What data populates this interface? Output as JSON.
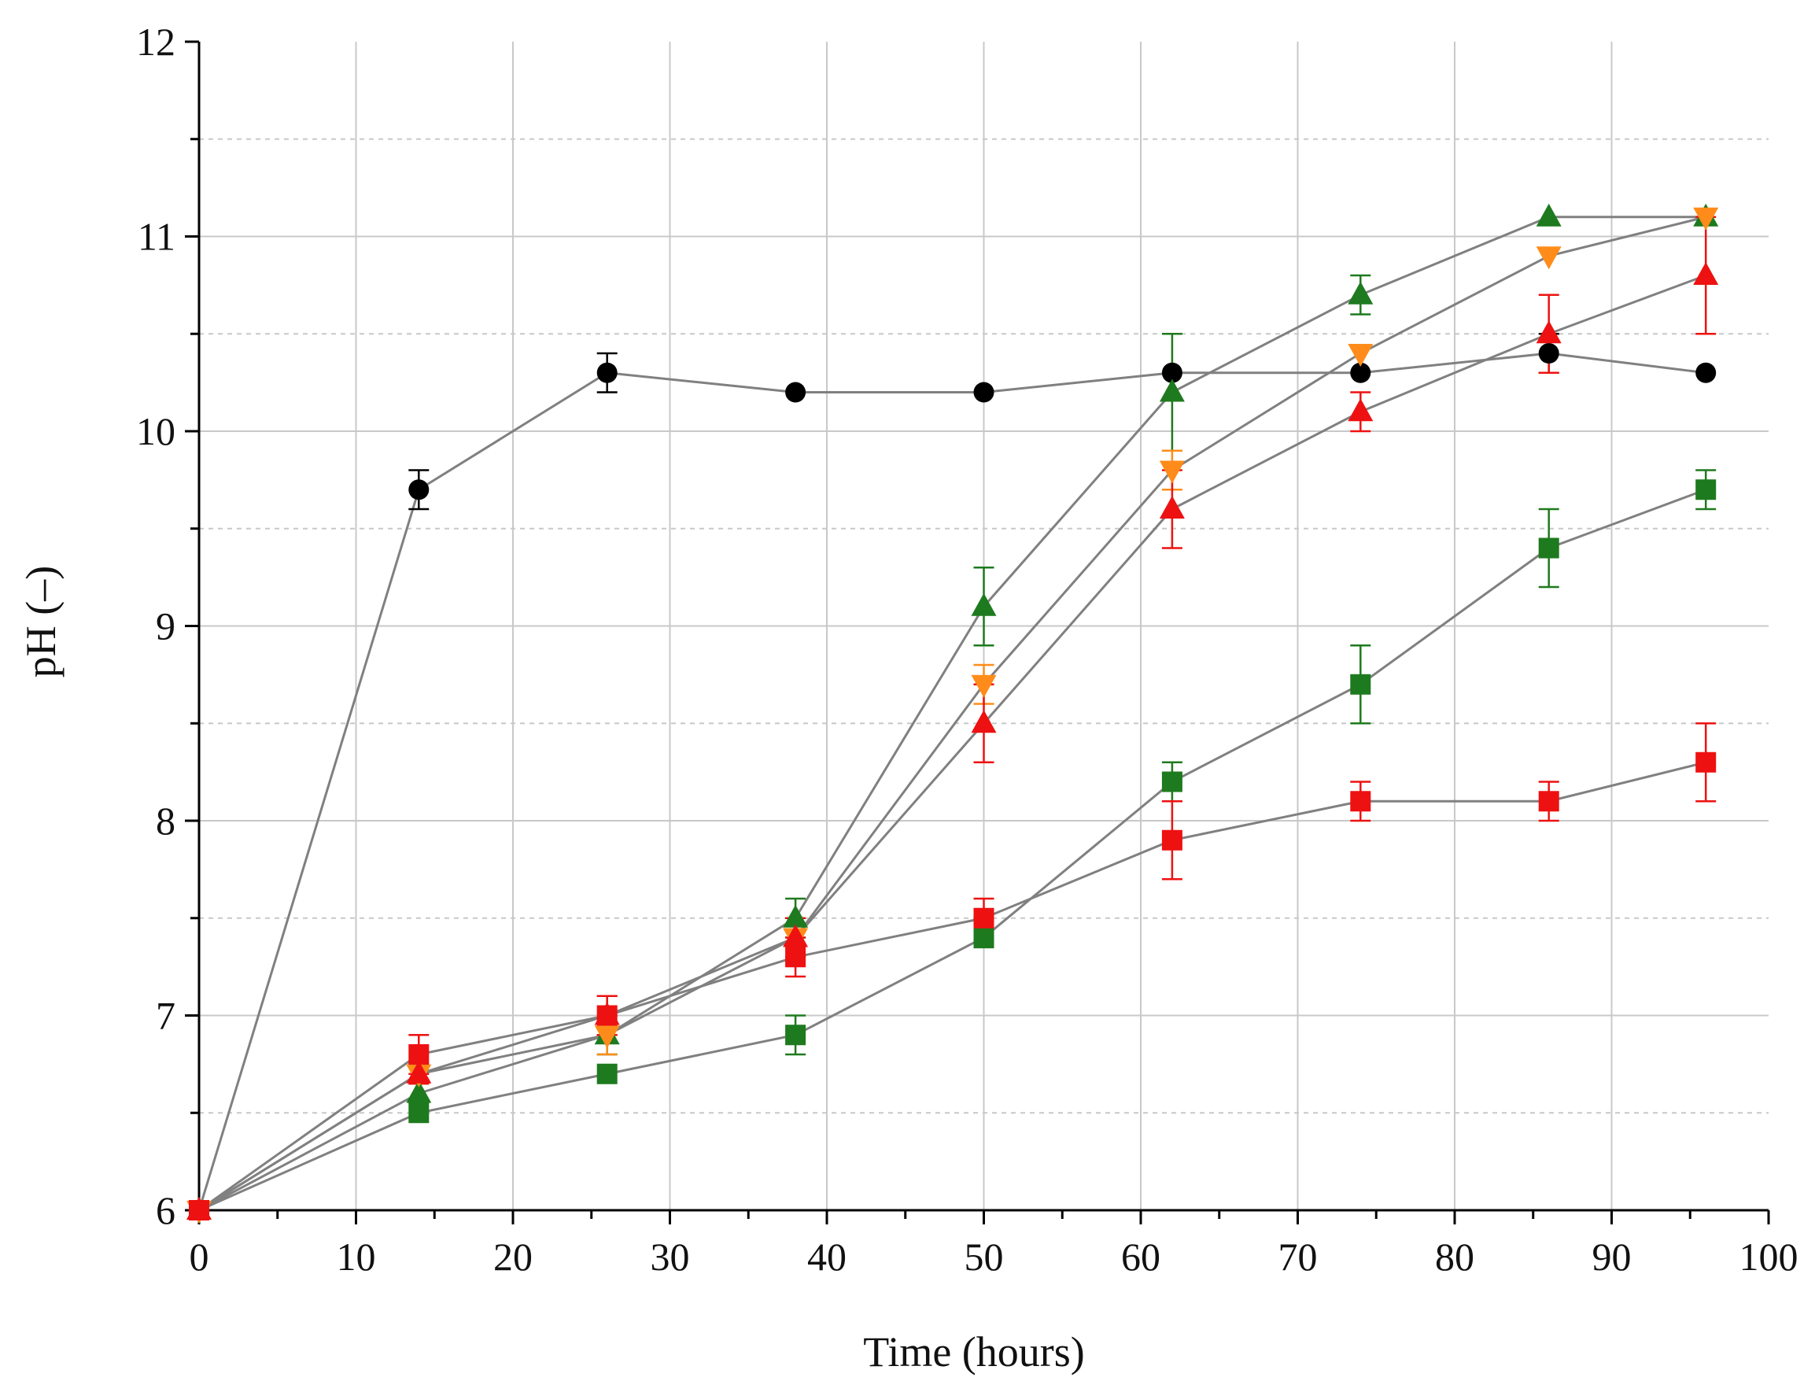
{
  "chart_data": {
    "type": "line",
    "title": "",
    "xlabel": "Time (hours)",
    "ylabel": "pH (–)",
    "xlim": [
      0,
      100
    ],
    "ylim": [
      6,
      12
    ],
    "x_ticks": [
      "0",
      "10",
      "20",
      "30",
      "40",
      "50",
      "60",
      "70",
      "80",
      "90",
      "100"
    ],
    "y_ticks": [
      "6",
      "7",
      "8",
      "9",
      "10",
      "11",
      "12"
    ],
    "grid": true,
    "legend": "none",
    "x": [
      0,
      14,
      26,
      38,
      50,
      62,
      74,
      86,
      96
    ],
    "colors": {
      "line": "#808080",
      "black": "#000000",
      "green": "#1e7a1e",
      "red": "#ee1111",
      "orange": "#ff8c1a",
      "grid": "#c8c8c8"
    },
    "series": [
      {
        "name": "black circles",
        "marker": "circle",
        "color": "black",
        "values": [
          6.0,
          9.7,
          10.3,
          10.2,
          10.2,
          10.3,
          10.3,
          10.4,
          10.3
        ],
        "errors": [
          0,
          0.1,
          0.1,
          0.0,
          0.0,
          0.0,
          0.0,
          0.1,
          0.0
        ]
      },
      {
        "name": "green triangles",
        "marker": "triangle-up",
        "color": "green",
        "values": [
          6.0,
          6.6,
          6.9,
          7.5,
          9.1,
          10.2,
          10.7,
          11.1,
          11.1
        ],
        "errors": [
          0,
          0.05,
          0.1,
          0.1,
          0.2,
          0.3,
          0.1,
          0.0,
          0.0
        ]
      },
      {
        "name": "orange inverted triangles",
        "marker": "triangle-down",
        "color": "orange",
        "values": [
          6.0,
          6.7,
          6.9,
          7.4,
          8.7,
          9.8,
          10.4,
          10.9,
          11.1
        ],
        "errors": [
          0,
          0.05,
          0.1,
          0.1,
          0.1,
          0.1,
          0.0,
          0.0,
          0.0
        ]
      },
      {
        "name": "red triangles",
        "marker": "triangle-up",
        "color": "red",
        "values": [
          6.0,
          6.7,
          7.0,
          7.4,
          8.5,
          9.6,
          10.1,
          10.5,
          10.8
        ],
        "errors": [
          0,
          0.05,
          0.1,
          0.1,
          0.2,
          0.2,
          0.1,
          0.2,
          0.3
        ]
      },
      {
        "name": "green squares",
        "marker": "square",
        "color": "green",
        "values": [
          6.0,
          6.5,
          6.7,
          6.9,
          7.4,
          8.2,
          8.7,
          9.4,
          9.7
        ],
        "errors": [
          0,
          0.0,
          0.0,
          0.1,
          0.05,
          0.1,
          0.2,
          0.2,
          0.1
        ]
      },
      {
        "name": "red squares",
        "marker": "square",
        "color": "red",
        "values": [
          6.0,
          6.8,
          7.0,
          7.3,
          7.5,
          7.9,
          8.1,
          8.1,
          8.3
        ],
        "errors": [
          0,
          0.1,
          0.1,
          0.1,
          0.1,
          0.2,
          0.1,
          0.1,
          0.2
        ]
      }
    ]
  }
}
